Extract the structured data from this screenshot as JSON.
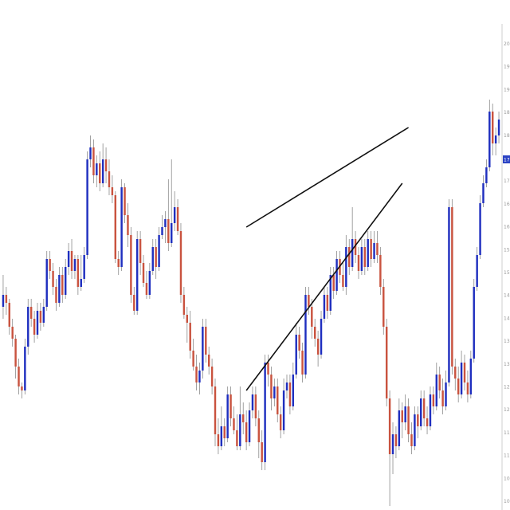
{
  "chart_data": {
    "type": "candlestick",
    "title": "",
    "xlabel": "",
    "ylabel": "",
    "ylim": [
      9.0,
      21.0
    ],
    "y_axis_side": "right",
    "grid": false,
    "colors": {
      "up": "#1f2fbf",
      "down": "#c9533f",
      "wick": "#8a8a8a",
      "pattern_line": "#111111",
      "axis": "#cfcfcf",
      "current_price_bg": "#2b43c4",
      "current_price_text": "#ffffff"
    },
    "current_price": 17.8,
    "candles": [
      [
        14.1,
        14.4,
        14.9,
        13.8
      ],
      [
        14.4,
        14.2,
        14.6,
        13.9
      ],
      [
        14.2,
        13.6,
        14.3,
        13.4
      ],
      [
        13.6,
        13.3,
        13.8,
        13.1
      ],
      [
        13.3,
        12.6,
        13.4,
        12.3
      ],
      [
        12.6,
        12.1,
        12.8,
        11.9
      ],
      [
        12.1,
        12.0,
        12.2,
        11.8
      ],
      [
        12.0,
        13.1,
        13.3,
        11.9
      ],
      [
        13.1,
        14.1,
        14.3,
        12.9
      ],
      [
        14.1,
        13.8,
        14.3,
        13.6
      ],
      [
        13.8,
        13.4,
        14.0,
        13.2
      ],
      [
        13.4,
        14.0,
        14.2,
        13.3
      ],
      [
        14.0,
        13.7,
        14.2,
        13.5
      ],
      [
        13.7,
        14.1,
        14.3,
        13.6
      ],
      [
        14.1,
        15.3,
        15.5,
        14.0
      ],
      [
        15.3,
        15.0,
        15.5,
        14.8
      ],
      [
        15.0,
        14.6,
        15.2,
        14.4
      ],
      [
        14.6,
        14.2,
        14.8,
        14.0
      ],
      [
        14.2,
        14.9,
        15.1,
        14.1
      ],
      [
        14.9,
        14.4,
        15.1,
        14.2
      ],
      [
        14.4,
        15.1,
        15.3,
        14.3
      ],
      [
        15.1,
        15.5,
        15.7,
        14.9
      ],
      [
        15.5,
        15.0,
        15.8,
        14.8
      ],
      [
        15.0,
        15.3,
        15.4,
        14.8
      ],
      [
        15.3,
        14.6,
        15.4,
        14.4
      ],
      [
        14.6,
        14.8,
        15.4,
        14.5
      ],
      [
        14.8,
        15.4,
        15.6,
        14.7
      ],
      [
        15.4,
        17.8,
        18.0,
        15.3
      ],
      [
        17.8,
        18.1,
        18.4,
        17.6
      ],
      [
        18.1,
        17.4,
        18.3,
        17.2
      ],
      [
        17.4,
        17.7,
        17.9,
        17.1
      ],
      [
        17.7,
        17.2,
        18.0,
        17.0
      ],
      [
        17.2,
        17.8,
        18.2,
        17.1
      ],
      [
        17.8,
        17.5,
        18.1,
        17.2
      ],
      [
        17.5,
        17.1,
        17.8,
        16.9
      ],
      [
        17.1,
        16.9,
        17.4,
        16.7
      ],
      [
        16.9,
        15.3,
        17.0,
        15.2
      ],
      [
        15.3,
        15.1,
        15.5,
        14.9
      ],
      [
        15.1,
        17.1,
        17.3,
        15.0
      ],
      [
        17.1,
        16.4,
        17.2,
        16.2
      ],
      [
        16.4,
        15.9,
        16.7,
        15.6
      ],
      [
        15.9,
        14.4,
        16.1,
        14.2
      ],
      [
        14.4,
        14.0,
        14.6,
        13.9
      ],
      [
        14.0,
        15.8,
        16.0,
        13.9
      ],
      [
        15.8,
        15.2,
        16.0,
        14.9
      ],
      [
        15.2,
        14.7,
        15.4,
        14.6
      ],
      [
        14.7,
        14.4,
        15.0,
        14.3
      ],
      [
        14.4,
        15.0,
        15.2,
        14.3
      ],
      [
        15.0,
        15.6,
        15.8,
        14.9
      ],
      [
        15.6,
        15.1,
        15.8,
        14.8
      ],
      [
        15.1,
        15.9,
        16.1,
        15.0
      ],
      [
        15.9,
        16.1,
        16.4,
        15.8
      ],
      [
        16.1,
        16.3,
        16.5,
        15.7
      ],
      [
        16.3,
        15.7,
        17.3,
        15.5
      ],
      [
        15.7,
        16.2,
        17.8,
        15.6
      ],
      [
        16.2,
        16.6,
        17.0,
        16.0
      ],
      [
        16.6,
        16.0,
        16.8,
        15.9
      ],
      [
        16.0,
        14.4,
        16.2,
        14.2
      ],
      [
        14.4,
        13.9,
        14.6,
        13.8
      ],
      [
        13.9,
        13.7,
        14.1,
        13.2
      ],
      [
        13.7,
        13.0,
        14.0,
        12.8
      ],
      [
        13.0,
        12.6,
        13.3,
        12.5
      ],
      [
        12.6,
        12.2,
        12.9,
        12.0
      ],
      [
        12.2,
        12.5,
        12.7,
        11.9
      ],
      [
        12.5,
        13.6,
        13.8,
        12.3
      ],
      [
        13.6,
        12.9,
        13.8,
        12.7
      ],
      [
        12.9,
        12.6,
        13.1,
        12.4
      ],
      [
        12.6,
        12.1,
        12.8,
        11.9
      ],
      [
        12.1,
        10.9,
        12.3,
        10.6
      ],
      [
        10.9,
        10.6,
        11.3,
        10.4
      ],
      [
        10.6,
        11.1,
        11.6,
        10.5
      ],
      [
        11.1,
        10.8,
        11.3,
        10.6
      ],
      [
        10.8,
        11.9,
        12.1,
        10.7
      ],
      [
        11.9,
        11.3,
        12.1,
        11.1
      ],
      [
        11.3,
        11.0,
        11.6,
        10.9
      ],
      [
        11.0,
        10.6,
        11.4,
        10.5
      ],
      [
        10.6,
        11.4,
        12.1,
        10.5
      ],
      [
        11.4,
        11.2,
        11.7,
        10.9
      ],
      [
        11.2,
        10.7,
        11.5,
        10.5
      ],
      [
        10.7,
        11.5,
        11.7,
        10.6
      ],
      [
        11.5,
        11.9,
        12.1,
        11.3
      ],
      [
        11.9,
        11.3,
        12.1,
        11.1
      ],
      [
        11.3,
        10.7,
        11.5,
        10.3
      ],
      [
        10.7,
        10.2,
        11.0,
        10.0
      ],
      [
        10.2,
        12.7,
        12.9,
        10.0
      ],
      [
        12.7,
        12.4,
        12.9,
        12.1
      ],
      [
        12.4,
        11.8,
        12.6,
        11.5
      ],
      [
        11.8,
        12.1,
        12.3,
        11.6
      ],
      [
        12.1,
        11.4,
        12.3,
        11.2
      ],
      [
        11.4,
        11.0,
        11.6,
        10.8
      ],
      [
        11.0,
        12.0,
        12.3,
        10.9
      ],
      [
        12.0,
        12.2,
        12.4,
        11.8
      ],
      [
        12.2,
        11.6,
        12.4,
        11.4
      ],
      [
        11.6,
        12.4,
        12.7,
        11.5
      ],
      [
        12.4,
        13.4,
        13.7,
        12.3
      ],
      [
        13.4,
        13.0,
        13.6,
        12.8
      ],
      [
        13.0,
        12.4,
        13.2,
        12.2
      ],
      [
        12.4,
        14.4,
        14.6,
        12.3
      ],
      [
        14.4,
        14.1,
        14.6,
        13.9
      ],
      [
        14.1,
        13.6,
        14.3,
        13.3
      ],
      [
        13.6,
        13.3,
        13.8,
        13.1
      ],
      [
        13.3,
        12.9,
        13.5,
        12.6
      ],
      [
        12.9,
        13.8,
        14.0,
        12.8
      ],
      [
        13.8,
        14.4,
        14.6,
        13.7
      ],
      [
        14.4,
        14.0,
        14.6,
        13.8
      ],
      [
        14.0,
        14.9,
        15.1,
        13.9
      ],
      [
        14.9,
        14.5,
        15.1,
        14.3
      ],
      [
        14.5,
        15.3,
        15.5,
        14.4
      ],
      [
        15.3,
        14.9,
        15.5,
        14.7
      ],
      [
        14.9,
        14.6,
        15.2,
        14.5
      ],
      [
        14.6,
        15.6,
        15.9,
        14.4
      ],
      [
        15.6,
        15.1,
        15.8,
        14.9
      ],
      [
        15.1,
        15.8,
        16.6,
        15.0
      ],
      [
        15.8,
        15.4,
        16.0,
        15.2
      ],
      [
        15.4,
        15.0,
        15.6,
        14.8
      ],
      [
        15.0,
        15.6,
        15.8,
        14.9
      ],
      [
        15.6,
        15.1,
        15.8,
        14.9
      ],
      [
        15.1,
        15.8,
        16.0,
        15.0
      ],
      [
        15.8,
        15.3,
        16.0,
        15.1
      ],
      [
        15.3,
        15.7,
        16.0,
        15.2
      ],
      [
        15.7,
        15.4,
        16.0,
        15.2
      ],
      [
        15.4,
        14.6,
        15.6,
        14.4
      ],
      [
        14.6,
        13.6,
        14.8,
        13.4
      ],
      [
        13.6,
        11.8,
        13.8,
        11.6
      ],
      [
        11.8,
        10.4,
        12.0,
        9.1
      ],
      [
        10.4,
        10.9,
        11.2,
        9.9
      ],
      [
        10.9,
        10.6,
        11.1,
        10.3
      ],
      [
        10.6,
        11.5,
        11.8,
        10.5
      ],
      [
        11.5,
        11.2,
        11.7,
        10.8
      ],
      [
        11.2,
        11.6,
        11.9,
        11.0
      ],
      [
        11.6,
        10.9,
        11.8,
        10.7
      ],
      [
        10.9,
        10.6,
        11.2,
        10.4
      ],
      [
        10.6,
        11.4,
        11.6,
        10.5
      ],
      [
        11.4,
        11.1,
        11.6,
        10.8
      ],
      [
        11.1,
        11.8,
        12.0,
        11.0
      ],
      [
        11.8,
        11.3,
        12.0,
        11.1
      ],
      [
        11.3,
        11.1,
        11.6,
        10.9
      ],
      [
        11.1,
        11.9,
        12.1,
        11.0
      ],
      [
        11.9,
        11.6,
        12.1,
        11.4
      ],
      [
        11.6,
        12.4,
        12.7,
        11.5
      ],
      [
        12.4,
        12.0,
        12.6,
        11.8
      ],
      [
        12.0,
        11.6,
        12.3,
        11.4
      ],
      [
        11.6,
        12.2,
        12.5,
        11.5
      ],
      [
        12.2,
        16.6,
        16.8,
        12.1
      ],
      [
        16.6,
        12.6,
        16.8,
        12.4
      ],
      [
        12.6,
        12.3,
        12.8,
        12.0
      ],
      [
        12.3,
        11.9,
        12.6,
        11.7
      ],
      [
        11.9,
        12.7,
        13.0,
        11.8
      ],
      [
        12.7,
        12.2,
        12.9,
        12.0
      ],
      [
        12.2,
        11.9,
        12.5,
        11.7
      ],
      [
        11.9,
        12.8,
        13.0,
        11.8
      ],
      [
        12.8,
        14.6,
        14.8,
        12.7
      ],
      [
        14.6,
        15.4,
        15.6,
        14.5
      ],
      [
        15.4,
        16.7,
        16.9,
        15.3
      ],
      [
        16.7,
        17.2,
        17.4,
        16.6
      ],
      [
        17.2,
        17.6,
        17.8,
        17.1
      ],
      [
        17.6,
        19.0,
        19.3,
        17.5
      ],
      [
        19.0,
        18.2,
        19.2,
        17.9
      ],
      [
        18.2,
        18.4,
        18.6,
        17.9
      ],
      [
        18.4,
        18.8,
        19.0,
        18.2
      ]
    ],
    "pattern_lines": [
      {
        "name": "upper-trend-line",
        "from": [
          78,
          16.1
        ],
        "to": [
          130,
          18.6
        ]
      },
      {
        "name": "lower-trend-line",
        "from": [
          78,
          12.0
        ],
        "to": [
          128,
          17.2
        ]
      }
    ],
    "y_ticks": [
      "20",
      "19",
      "19",
      "18",
      "18",
      "17",
      "17",
      "16",
      "16",
      "15",
      "15",
      "14",
      "14",
      "13",
      "13",
      "12",
      "12",
      "11",
      "11",
      "10",
      "10",
      "9"
    ]
  }
}
